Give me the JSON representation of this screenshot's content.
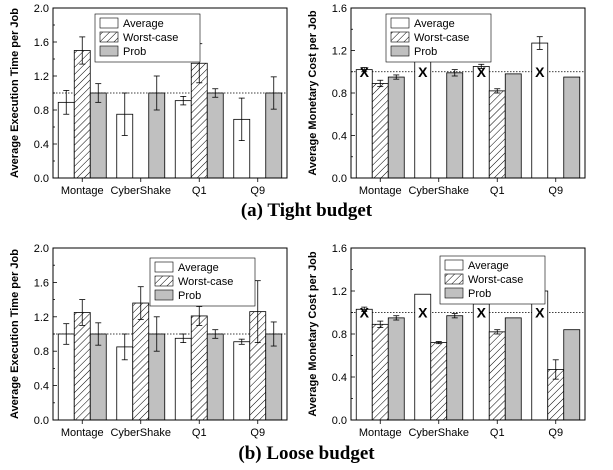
{
  "captions": [
    "(a) Tight budget",
    "(b) Loose budget"
  ],
  "legend": [
    "Average",
    "Worst-case",
    "Prob"
  ],
  "chart_data": [
    {
      "type": "bar",
      "categories": [
        "Montage",
        "CyberShake",
        "Q1",
        "Q9"
      ],
      "series": [
        {
          "name": "Average",
          "values": [
            0.89,
            0.75,
            0.91,
            0.69
          ],
          "errors": [
            0.14,
            0.25,
            0.05,
            0.25
          ]
        },
        {
          "name": "Worst-case",
          "values": [
            1.5,
            null,
            1.35,
            null
          ],
          "errors": [
            0.16,
            null,
            0.23,
            null
          ]
        },
        {
          "name": "Prob",
          "values": [
            1.0,
            1.0,
            1.0,
            1.0
          ],
          "errors": [
            0.11,
            0.2,
            0.05,
            0.19
          ]
        }
      ],
      "ylabel": "Average Execution Time per Job",
      "ylim": [
        0,
        2.0
      ],
      "yticks": [
        "0.0",
        "0.4",
        "0.8",
        "1.2",
        "1.6",
        "2.0"
      ],
      "reference_line": 1.0,
      "legend_position": "top-left"
    },
    {
      "type": "bar",
      "categories": [
        "Montage",
        "CyberShake",
        "Q1",
        "Q9"
      ],
      "series": [
        {
          "name": "Average",
          "values": [
            1.02,
            1.14,
            1.05,
            1.27
          ],
          "errors": [
            0.02,
            0.04,
            0.02,
            0.06
          ]
        },
        {
          "name": "Worst-case",
          "values": [
            0.89,
            null,
            0.82,
            null
          ],
          "errors": [
            0.03,
            null,
            0.02,
            null
          ]
        },
        {
          "name": "Prob",
          "values": [
            0.95,
            0.99,
            0.98,
            0.95
          ],
          "errors": [
            0.02,
            0.03,
            0.0,
            0.0
          ]
        }
      ],
      "markers": {
        "symbol": "X",
        "values": [
          1.0,
          1.0,
          1.0,
          1.0
        ]
      },
      "ylabel": "Average Monetary Cost per Job",
      "ylim": [
        0,
        1.6
      ],
      "yticks": [
        "0.0",
        "0.4",
        "0.8",
        "1.2",
        "1.6"
      ],
      "reference_line": 1.0,
      "legend_position": "top-left"
    },
    {
      "type": "bar",
      "categories": [
        "Montage",
        "CyberShake",
        "Q1",
        "Q9"
      ],
      "series": [
        {
          "name": "Average",
          "values": [
            1.0,
            0.85,
            0.95,
            0.91
          ],
          "errors": [
            0.12,
            0.15,
            0.05,
            0.03
          ]
        },
        {
          "name": "Worst-case",
          "values": [
            1.25,
            1.36,
            1.21,
            1.26
          ],
          "errors": [
            0.15,
            0.19,
            0.11,
            0.36
          ]
        },
        {
          "name": "Prob",
          "values": [
            1.0,
            1.0,
            1.0,
            1.0
          ],
          "errors": [
            0.13,
            0.2,
            0.05,
            0.14
          ]
        }
      ],
      "ylabel": "Average Execution Time per Job",
      "ylim": [
        0,
        2.0
      ],
      "yticks": [
        "0.0",
        "0.4",
        "0.8",
        "1.2",
        "1.6",
        "2.0"
      ],
      "reference_line": 1.0,
      "legend_position": "top-right"
    },
    {
      "type": "bar",
      "categories": [
        "Montage",
        "CyberShake",
        "Q1",
        "Q9"
      ],
      "series": [
        {
          "name": "Average",
          "values": [
            1.03,
            1.17,
            1.08,
            1.2
          ],
          "errors": [
            0.02,
            0.0,
            0.0,
            0.04
          ]
        },
        {
          "name": "Worst-case",
          "values": [
            0.89,
            0.72,
            0.82,
            0.47
          ],
          "errors": [
            0.03,
            0.01,
            0.02,
            0.09
          ]
        },
        {
          "name": "Prob",
          "values": [
            0.95,
            0.97,
            0.95,
            0.84
          ],
          "errors": [
            0.02,
            0.02,
            0.0,
            0.0
          ]
        }
      ],
      "markers": {
        "symbol": "X",
        "values": [
          1.0,
          1.0,
          1.0,
          1.0
        ]
      },
      "ylabel": "Average Monetary Cost per Job",
      "ylim": [
        0,
        1.6
      ],
      "yticks": [
        "0.0",
        "0.4",
        "0.8",
        "1.2",
        "1.6"
      ],
      "reference_line": 1.0,
      "legend_position": "top-right"
    }
  ]
}
